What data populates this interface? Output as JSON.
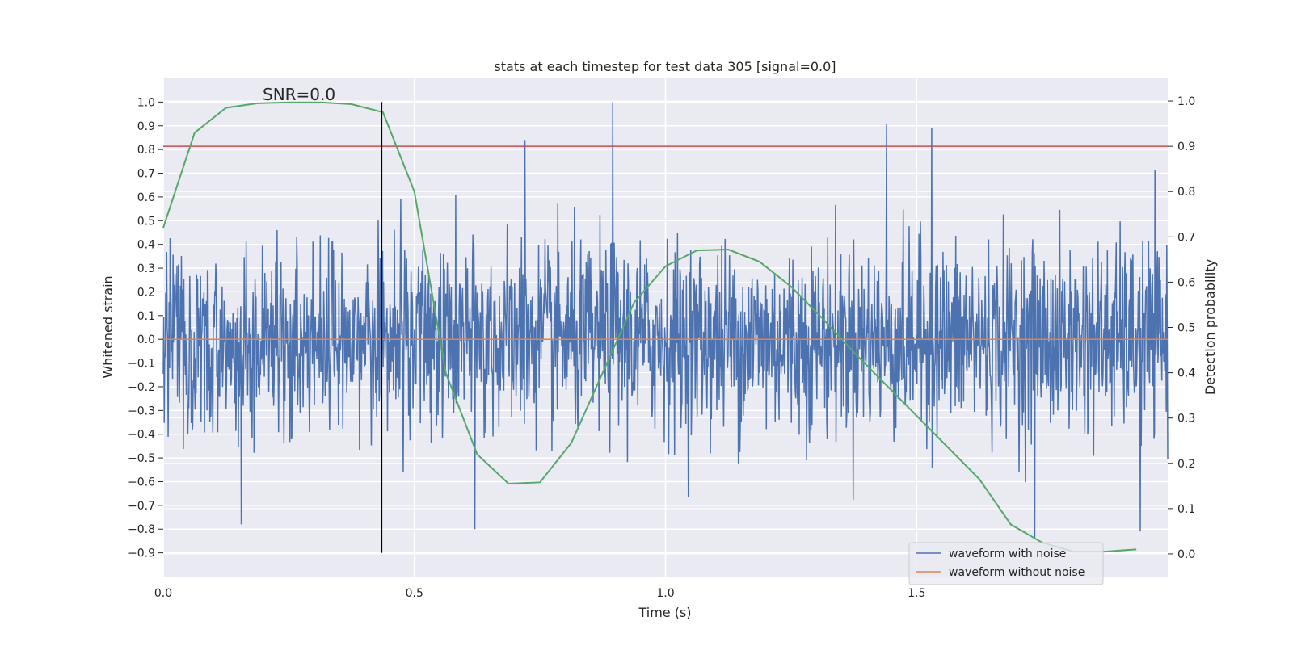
{
  "chart_data": {
    "type": "line",
    "title": "stats at each timestep for test data 305 [signal=0.0]",
    "xlabel": "Time (s)",
    "ylabel": "Whitened strain",
    "y2label": "Detection probability",
    "xlim": [
      0.0,
      2.0
    ],
    "ylim": [
      -1.0,
      1.1
    ],
    "y2lim": [
      -0.05,
      1.05
    ],
    "x_ticks": [
      0.0,
      0.5,
      1.0,
      1.5
    ],
    "x_tick_labels": [
      "0.0",
      "0.5",
      "1.0",
      "1.5"
    ],
    "y_ticks": [
      1.0,
      0.9,
      0.8,
      0.7,
      0.6,
      0.5,
      0.4,
      0.3,
      0.2,
      0.1,
      0.0,
      -0.1,
      -0.2,
      -0.3,
      -0.4,
      -0.5,
      -0.6,
      -0.7,
      -0.8,
      -0.9
    ],
    "y_tick_labels": [
      "1.0",
      "0.9",
      "0.8",
      "0.7",
      "0.6",
      "0.5",
      "0.4",
      "0.3",
      "0.2",
      "0.1",
      "0.0",
      "−0.1",
      "−0.2",
      "−0.3",
      "−0.4",
      "−0.5",
      "−0.6",
      "−0.7",
      "−0.8",
      "−0.9"
    ],
    "y2_ticks": [
      1.0,
      0.9,
      0.8,
      0.7,
      0.6,
      0.5,
      0.4,
      0.3,
      0.2,
      0.1,
      0.0
    ],
    "y2_tick_labels": [
      "1.0",
      "0.9",
      "0.8",
      "0.7",
      "0.6",
      "0.5",
      "0.4",
      "0.3",
      "0.2",
      "0.1",
      "0.0"
    ],
    "annotation": "SNR=0.0",
    "grid": true,
    "legend_position": "bottom-right",
    "background": "#eaeaf2",
    "series": [
      {
        "name": "waveform with noise",
        "color": "#4c72b0",
        "axis": "left",
        "kind": "noise",
        "n_points": 2048,
        "approx_range": [
          -0.8,
          1.0
        ],
        "peaks": [
          {
            "x": 0.895,
            "y": 1.0
          },
          {
            "x": 1.44,
            "y": 0.91
          },
          {
            "x": 1.53,
            "y": 0.89
          },
          {
            "x": 0.72,
            "y": 0.84
          },
          {
            "x": 0.155,
            "y": -0.78
          },
          {
            "x": 0.62,
            "y": -0.8
          },
          {
            "x": 1.735,
            "y": -0.84
          },
          {
            "x": 1.945,
            "y": -0.81
          }
        ]
      },
      {
        "name": "waveform without noise",
        "color": "#dd8452",
        "axis": "left",
        "x": [
          0.0,
          2.0
        ],
        "y": [
          0.0,
          0.0
        ]
      },
      {
        "color": "#55a868",
        "axis": "right",
        "x": [
          0.0,
          0.0625,
          0.125,
          0.1875,
          0.25,
          0.3125,
          0.375,
          0.4375,
          0.5,
          0.5625,
          0.625,
          0.6875,
          0.75,
          0.8125,
          0.875,
          0.9375,
          1.0,
          1.0625,
          1.125,
          1.1875,
          1.25,
          1.3125,
          1.375,
          1.4375,
          1.5,
          1.5625,
          1.625,
          1.6875,
          1.75,
          1.8125,
          1.875,
          1.9375
        ],
        "y": [
          0.72,
          0.93,
          0.985,
          0.995,
          0.997,
          0.997,
          0.993,
          0.975,
          0.8,
          0.4,
          0.22,
          0.155,
          0.158,
          0.245,
          0.4,
          0.555,
          0.635,
          0.67,
          0.672,
          0.645,
          0.59,
          0.52,
          0.445,
          0.375,
          0.305,
          0.235,
          0.165,
          0.065,
          0.025,
          0.005,
          0.005,
          0.01
        ]
      }
    ],
    "threshold": {
      "axis": "right",
      "value": 0.9,
      "color": "#c44e52"
    },
    "vline": {
      "x": 0.435,
      "ymin": -0.9,
      "ymax": 1.0,
      "color": "#000000"
    }
  }
}
